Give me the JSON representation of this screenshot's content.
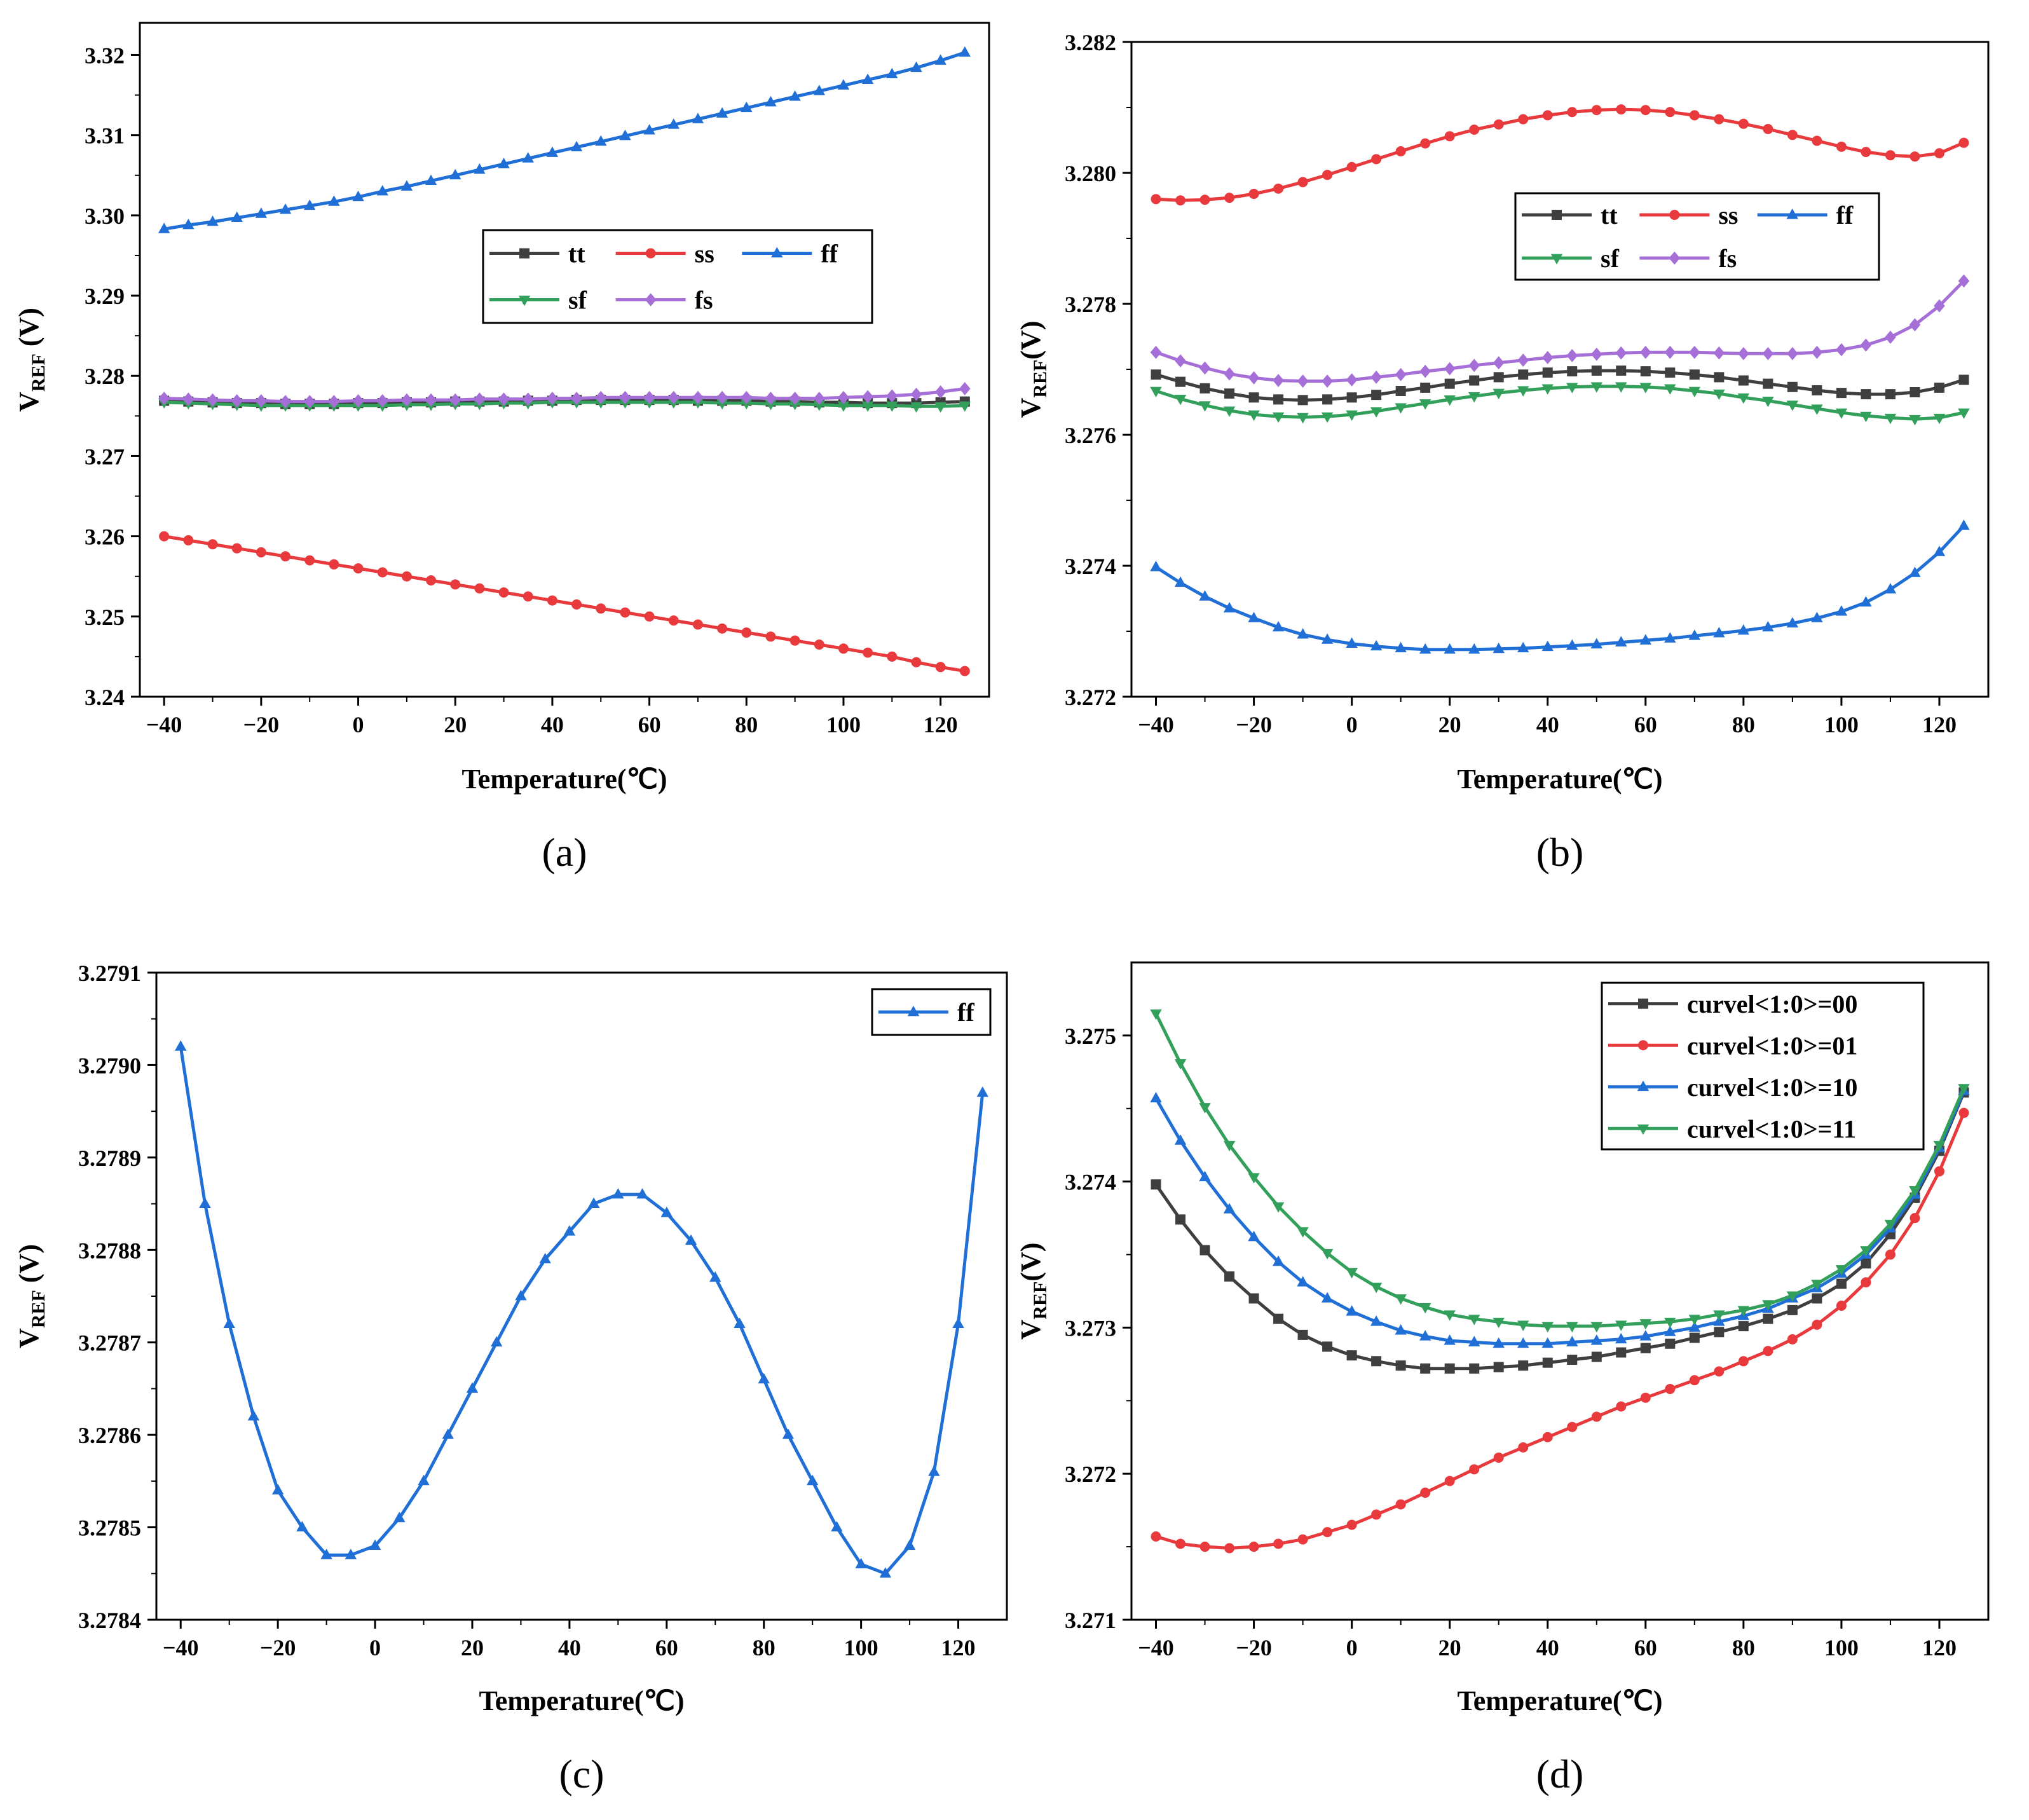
{
  "chart_data": [
    {
      "type": "line",
      "caption": "(a)",
      "xlabel": "Temperature(℃)",
      "ylabel_main": "V",
      "ylabel_sub": "REF",
      "ylabel_unit": " (V)",
      "xlim": [
        -45,
        130
      ],
      "ylim": [
        3.24,
        3.324
      ],
      "xticks": [
        -40,
        -20,
        0,
        20,
        40,
        60,
        80,
        100,
        120
      ],
      "xtick_labels": [
        "−40",
        "−20",
        "0",
        "20",
        "40",
        "60",
        "80",
        "100",
        "120"
      ],
      "yticks": [
        3.24,
        3.25,
        3.26,
        3.27,
        3.28,
        3.29,
        3.3,
        3.31,
        3.32
      ],
      "ytick_labels": [
        "3.24",
        "3.25",
        "3.26",
        "3.27",
        "3.28",
        "3.29",
        "3.30",
        "3.31",
        "3.32"
      ],
      "legend": {
        "position": "center",
        "columns": 3
      },
      "x": [
        -40,
        -35,
        -30,
        -25,
        -20,
        -15,
        -10,
        -5,
        0,
        5,
        10,
        15,
        20,
        25,
        30,
        35,
        40,
        45,
        50,
        55,
        60,
        65,
        70,
        75,
        80,
        85,
        90,
        95,
        100,
        105,
        110,
        115,
        120,
        125
      ],
      "series": [
        {
          "name": "tt",
          "color": "#3f3f3f",
          "marker": "square",
          "values": [
            3.2769,
            3.2768,
            3.2767,
            3.2766,
            3.2766,
            3.2765,
            3.2765,
            3.2765,
            3.2766,
            3.2766,
            3.2767,
            3.2767,
            3.2768,
            3.2768,
            3.2768,
            3.2769,
            3.2769,
            3.277,
            3.277,
            3.277,
            3.277,
            3.277,
            3.2769,
            3.2769,
            3.2769,
            3.2768,
            3.2768,
            3.2767,
            3.2767,
            3.2766,
            3.2766,
            3.2766,
            3.2767,
            3.2768
          ]
        },
        {
          "name": "ss",
          "color": "#e8393c",
          "marker": "circle",
          "values": [
            3.26,
            3.2595,
            3.259,
            3.2585,
            3.258,
            3.2575,
            3.257,
            3.2565,
            3.256,
            3.2555,
            3.255,
            3.2545,
            3.254,
            3.2535,
            3.253,
            3.2525,
            3.252,
            3.2515,
            3.251,
            3.2505,
            3.25,
            3.2495,
            3.249,
            3.2485,
            3.248,
            3.2475,
            3.247,
            3.2465,
            3.246,
            3.2455,
            3.245,
            3.2443,
            3.2437,
            3.2432
          ]
        },
        {
          "name": "ff",
          "color": "#1f6fd6",
          "marker": "triangle-up",
          "values": [
            3.2983,
            3.2988,
            3.2992,
            3.2997,
            3.3002,
            3.3007,
            3.3012,
            3.3017,
            3.3023,
            3.303,
            3.3036,
            3.3043,
            3.305,
            3.3057,
            3.3064,
            3.3071,
            3.3078,
            3.3085,
            3.3092,
            3.3099,
            3.3106,
            3.3113,
            3.312,
            3.3127,
            3.3134,
            3.3141,
            3.3148,
            3.3155,
            3.3162,
            3.3169,
            3.3176,
            3.3184,
            3.3193,
            3.3203
          ]
        },
        {
          "name": "sf",
          "color": "#32a05a",
          "marker": "triangle-down",
          "values": [
            3.2767,
            3.2766,
            3.2765,
            3.2764,
            3.2763,
            3.2763,
            3.2763,
            3.2763,
            3.2763,
            3.2763,
            3.2764,
            3.2764,
            3.2765,
            3.2765,
            3.2766,
            3.2766,
            3.2767,
            3.2767,
            3.2767,
            3.2767,
            3.2767,
            3.2767,
            3.2767,
            3.2766,
            3.2766,
            3.2765,
            3.2765,
            3.2764,
            3.2763,
            3.2763,
            3.2763,
            3.2762,
            3.2762,
            3.2763
          ]
        },
        {
          "name": "fs",
          "color": "#a66fd8",
          "marker": "diamond",
          "values": [
            3.2772,
            3.2771,
            3.277,
            3.2769,
            3.2769,
            3.2768,
            3.2768,
            3.2768,
            3.2769,
            3.2769,
            3.277,
            3.277,
            3.277,
            3.2771,
            3.2771,
            3.2771,
            3.2772,
            3.2772,
            3.2773,
            3.2773,
            3.2773,
            3.2773,
            3.2773,
            3.2773,
            3.2773,
            3.2772,
            3.2772,
            3.2772,
            3.2773,
            3.2774,
            3.2775,
            3.2777,
            3.278,
            3.2784
          ]
        }
      ]
    },
    {
      "type": "line",
      "caption": "(b)",
      "xlabel": "Temperature(℃)",
      "ylabel_main": "V",
      "ylabel_sub": "REF",
      "ylabel_unit": "(V)",
      "xlim": [
        -45,
        130
      ],
      "ylim": [
        3.272,
        3.282
      ],
      "xticks": [
        -40,
        -20,
        0,
        20,
        40,
        60,
        80,
        100,
        120
      ],
      "xtick_labels": [
        "−40",
        "−20",
        "0",
        "20",
        "40",
        "60",
        "80",
        "100",
        "120"
      ],
      "yticks": [
        3.272,
        3.274,
        3.276,
        3.278,
        3.28,
        3.282
      ],
      "ytick_labels": [
        "3.272",
        "3.274",
        "3.276",
        "3.278",
        "3.280",
        "3.282"
      ],
      "legend": {
        "position": "top-right",
        "columns": 3
      },
      "x": [
        -40,
        -35,
        -30,
        -25,
        -20,
        -15,
        -10,
        -5,
        0,
        5,
        10,
        15,
        20,
        25,
        30,
        35,
        40,
        45,
        50,
        55,
        60,
        65,
        70,
        75,
        80,
        85,
        90,
        95,
        100,
        105,
        110,
        115,
        120,
        125
      ],
      "series": [
        {
          "name": "tt",
          "color": "#3f3f3f",
          "marker": "square",
          "values": [
            3.27692,
            3.27681,
            3.27671,
            3.27663,
            3.27657,
            3.27654,
            3.27653,
            3.27654,
            3.27657,
            3.27661,
            3.27667,
            3.27672,
            3.27678,
            3.27683,
            3.27688,
            3.27692,
            3.27695,
            3.27697,
            3.27698,
            3.27698,
            3.27697,
            3.27695,
            3.27692,
            3.27688,
            3.27683,
            3.27678,
            3.27673,
            3.27668,
            3.27664,
            3.27662,
            3.27662,
            3.27665,
            3.27672,
            3.27684
          ]
        },
        {
          "name": "ss",
          "color": "#e8393c",
          "marker": "circle",
          "values": [
            3.2796,
            3.27958,
            3.27959,
            3.27962,
            3.27968,
            3.27976,
            3.27986,
            3.27997,
            3.28009,
            3.28021,
            3.28033,
            3.28045,
            3.28056,
            3.28066,
            3.28074,
            3.28082,
            3.28088,
            3.28093,
            3.28096,
            3.28097,
            3.28096,
            3.28093,
            3.28088,
            3.28082,
            3.28075,
            3.28067,
            3.28058,
            3.28049,
            3.2804,
            3.28032,
            3.28027,
            3.28025,
            3.2803,
            3.28046
          ]
        },
        {
          "name": "ff",
          "color": "#1f6fd6",
          "marker": "triangle-up",
          "values": [
            3.27398,
            3.27374,
            3.27353,
            3.27335,
            3.2732,
            3.27306,
            3.27295,
            3.27287,
            3.27281,
            3.27277,
            3.27274,
            3.27272,
            3.27272,
            3.27272,
            3.27273,
            3.27274,
            3.27276,
            3.27278,
            3.2728,
            3.27283,
            3.27286,
            3.27289,
            3.27293,
            3.27297,
            3.27301,
            3.27306,
            3.27312,
            3.2732,
            3.2733,
            3.27344,
            3.27364,
            3.27389,
            3.27421,
            3.27461
          ]
        },
        {
          "name": "sf",
          "color": "#32a05a",
          "marker": "triangle-down",
          "values": [
            3.27667,
            3.27655,
            3.27645,
            3.27637,
            3.27631,
            3.27628,
            3.27627,
            3.27628,
            3.27631,
            3.27636,
            3.27642,
            3.27648,
            3.27654,
            3.27659,
            3.27664,
            3.27668,
            3.27671,
            3.27673,
            3.27674,
            3.27674,
            3.27673,
            3.27671,
            3.27667,
            3.27663,
            3.27657,
            3.27652,
            3.27646,
            3.2764,
            3.27634,
            3.27629,
            3.27626,
            3.27624,
            3.27626,
            3.27634
          ]
        },
        {
          "name": "fs",
          "color": "#a66fd8",
          "marker": "diamond",
          "values": [
            3.27726,
            3.27713,
            3.27702,
            3.27693,
            3.27687,
            3.27683,
            3.27682,
            3.27682,
            3.27684,
            3.27688,
            3.27692,
            3.27697,
            3.27701,
            3.27706,
            3.2771,
            3.27714,
            3.27718,
            3.27721,
            3.27723,
            3.27725,
            3.27726,
            3.27726,
            3.27726,
            3.27725,
            3.27724,
            3.27724,
            3.27724,
            3.27726,
            3.2773,
            3.27737,
            3.27749,
            3.27768,
            3.27797,
            3.27835
          ]
        }
      ]
    },
    {
      "type": "line",
      "caption": "(c)",
      "xlabel": "Temperature(℃)",
      "ylabel_main": "V",
      "ylabel_sub": "REF",
      "ylabel_unit": " (V)",
      "xlim": [
        -45,
        130
      ],
      "ylim": [
        3.2784,
        3.2791
      ],
      "xticks": [
        -40,
        -20,
        0,
        20,
        40,
        60,
        80,
        100,
        120
      ],
      "xtick_labels": [
        "−40",
        "−20",
        "0",
        "20",
        "40",
        "60",
        "80",
        "100",
        "120"
      ],
      "yticks": [
        3.2784,
        3.2785,
        3.2786,
        3.2787,
        3.2788,
        3.2789,
        3.279,
        3.2791
      ],
      "ytick_labels": [
        "3.2784",
        "3.2785",
        "3.2786",
        "3.2787",
        "3.2788",
        "3.2789",
        "3.2790",
        "3.2791"
      ],
      "legend": {
        "position": "top-right",
        "columns": 1
      },
      "x": [
        -40,
        -35,
        -30,
        -25,
        -20,
        -15,
        -10,
        -5,
        0,
        5,
        10,
        15,
        20,
        25,
        30,
        35,
        40,
        45,
        50,
        55,
        60,
        65,
        70,
        75,
        80,
        85,
        90,
        95,
        100,
        105,
        110,
        115,
        120,
        125
      ],
      "series": [
        {
          "name": "ff",
          "color": "#1f6fd6",
          "marker": "triangle-up",
          "values": [
            3.27902,
            3.27885,
            3.27872,
            3.27862,
            3.27854,
            3.2785,
            3.27847,
            3.27847,
            3.27848,
            3.27851,
            3.27855,
            3.2786,
            3.27865,
            3.2787,
            3.27875,
            3.27879,
            3.27882,
            3.27885,
            3.27886,
            3.27886,
            3.27884,
            3.27881,
            3.27877,
            3.27872,
            3.27866,
            3.2786,
            3.27855,
            3.2785,
            3.27846,
            3.27845,
            3.27848,
            3.27856,
            3.27872,
            3.27897
          ]
        }
      ]
    },
    {
      "type": "line",
      "caption": "(d)",
      "xlabel": "Temperature(℃)",
      "ylabel_main": "V",
      "ylabel_sub": "REF",
      "ylabel_unit": "(V)",
      "xlim": [
        -45,
        130
      ],
      "ylim": [
        3.271,
        3.2755
      ],
      "xticks": [
        -40,
        -20,
        0,
        20,
        40,
        60,
        80,
        100,
        120
      ],
      "xtick_labels": [
        "−40",
        "−20",
        "0",
        "20",
        "40",
        "60",
        "80",
        "100",
        "120"
      ],
      "yticks": [
        3.271,
        3.272,
        3.273,
        3.274,
        3.275
      ],
      "ytick_labels": [
        "3.271",
        "3.272",
        "3.273",
        "3.274",
        "3.275"
      ],
      "legend": {
        "position": "top-right",
        "columns": 1
      },
      "x": [
        -40,
        -35,
        -30,
        -25,
        -20,
        -15,
        -10,
        -5,
        0,
        5,
        10,
        15,
        20,
        25,
        30,
        35,
        40,
        45,
        50,
        55,
        60,
        65,
        70,
        75,
        80,
        85,
        90,
        95,
        100,
        105,
        110,
        115,
        120,
        125
      ],
      "series": [
        {
          "name": "curvel<1:0>=00",
          "color": "#3f3f3f",
          "marker": "square",
          "values": [
            3.27398,
            3.27374,
            3.27353,
            3.27335,
            3.2732,
            3.27306,
            3.27295,
            3.27287,
            3.27281,
            3.27277,
            3.27274,
            3.27272,
            3.27272,
            3.27272,
            3.27273,
            3.27274,
            3.27276,
            3.27278,
            3.2728,
            3.27283,
            3.27286,
            3.27289,
            3.27293,
            3.27297,
            3.27301,
            3.27306,
            3.27312,
            3.2732,
            3.2733,
            3.27344,
            3.27364,
            3.27389,
            3.27421,
            3.27461
          ]
        },
        {
          "name": "curvel<1:0>=01",
          "color": "#e8393c",
          "marker": "circle",
          "values": [
            3.27157,
            3.27152,
            3.2715,
            3.27149,
            3.2715,
            3.27152,
            3.27155,
            3.2716,
            3.27165,
            3.27172,
            3.27179,
            3.27187,
            3.27195,
            3.27203,
            3.27211,
            3.27218,
            3.27225,
            3.27232,
            3.27239,
            3.27246,
            3.27252,
            3.27258,
            3.27264,
            3.2727,
            3.27277,
            3.27284,
            3.27292,
            3.27302,
            3.27315,
            3.27331,
            3.2735,
            3.27375,
            3.27407,
            3.27447
          ]
        },
        {
          "name": "curvel<1:0>=10",
          "color": "#1f6fd6",
          "marker": "triangle-up",
          "values": [
            3.27457,
            3.27428,
            3.27403,
            3.27381,
            3.27362,
            3.27345,
            3.27331,
            3.2732,
            3.27311,
            3.27304,
            3.27298,
            3.27294,
            3.27291,
            3.2729,
            3.27289,
            3.27289,
            3.27289,
            3.2729,
            3.27291,
            3.27292,
            3.27294,
            3.27297,
            3.273,
            3.27304,
            3.27308,
            3.27313,
            3.2732,
            3.27327,
            3.27337,
            3.2735,
            3.27368,
            3.27391,
            3.27423,
            3.27462
          ]
        },
        {
          "name": "curvel<1:0>=11",
          "color": "#32a05a",
          "marker": "triangle-down",
          "values": [
            3.27515,
            3.27481,
            3.27451,
            3.27425,
            3.27403,
            3.27383,
            3.27366,
            3.27351,
            3.27338,
            3.27328,
            3.2732,
            3.27314,
            3.27309,
            3.27306,
            3.27304,
            3.27302,
            3.27301,
            3.27301,
            3.27301,
            3.27302,
            3.27303,
            3.27304,
            3.27306,
            3.27309,
            3.27312,
            3.27316,
            3.27322,
            3.2733,
            3.2734,
            3.27353,
            3.27371,
            3.27394,
            3.27425,
            3.27464
          ]
        }
      ]
    }
  ]
}
